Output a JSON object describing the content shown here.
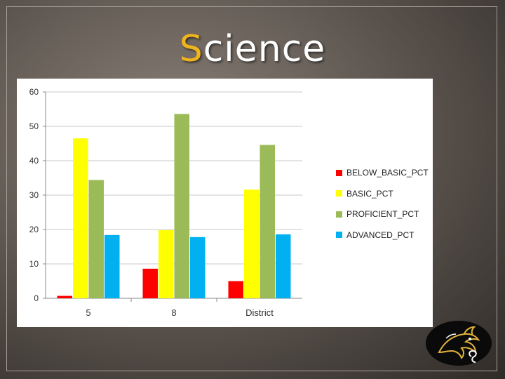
{
  "slide": {
    "title_first_letter": "S",
    "title_rest": "cience"
  },
  "colors": {
    "title_accent": "#f0b41c",
    "background": "#5e5750",
    "below_basic": "#ff0000",
    "basic": "#ffff00",
    "proficient": "#9bbb59",
    "advanced": "#00b0f0"
  },
  "chart_data": {
    "type": "bar",
    "title": "",
    "xlabel": "",
    "ylabel": "",
    "categories": [
      "5",
      "8",
      "District"
    ],
    "ylim": [
      0,
      60
    ],
    "yticks": [
      "0",
      "10",
      "20",
      "30",
      "40",
      "50",
      "60"
    ],
    "grid": true,
    "legend_position": "right",
    "series": [
      {
        "name": "BELOW_BASIC_PCT",
        "color": "#ff0000",
        "values": [
          0.7,
          8.6,
          5.0
        ]
      },
      {
        "name": "BASIC_PCT",
        "color": "#ffff00",
        "values": [
          46.5,
          19.8,
          31.6
        ]
      },
      {
        "name": "PROFICIENT_PCT",
        "color": "#9bbb59",
        "values": [
          34.4,
          53.6,
          44.6
        ]
      },
      {
        "name": "ADVANCED_PCT",
        "color": "#00b0f0",
        "values": [
          18.4,
          17.8,
          18.6
        ]
      }
    ]
  },
  "logo": {
    "icon": "dragon-mascot-icon"
  }
}
